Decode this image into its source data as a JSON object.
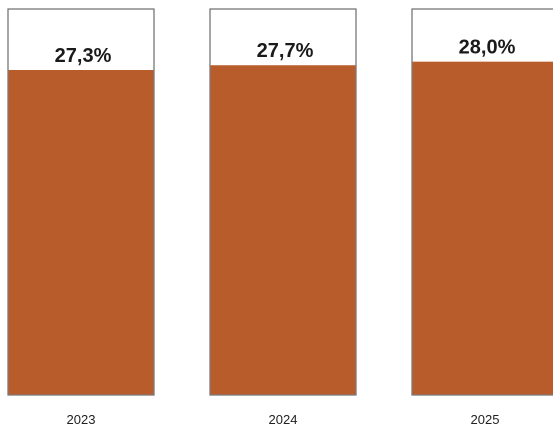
{
  "chart_data": {
    "type": "bar",
    "categories": [
      "2023",
      "2024",
      "2025"
    ],
    "values": [
      27.3,
      27.7,
      28.0
    ],
    "data_labels": [
      "27,3%",
      "27,7%",
      "28,0%"
    ],
    "title": "",
    "xlabel": "",
    "ylabel": "",
    "unit": "%",
    "grid": false,
    "legend": "none",
    "colors": {
      "bar_fill": "#b85c2c",
      "box_background": "#ffffff",
      "box_border": "#6b6b6b",
      "label_text": "#1a1a1a"
    }
  }
}
